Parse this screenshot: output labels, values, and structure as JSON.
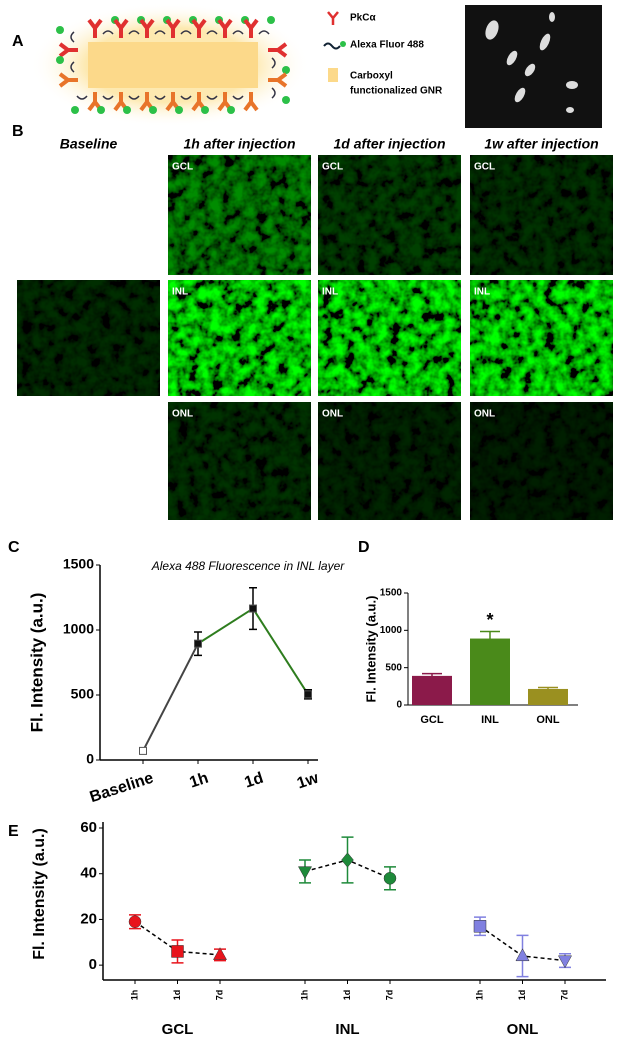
{
  "panel_labels": [
    "A",
    "B",
    "C",
    "D",
    "E"
  ],
  "legend_a": {
    "antibody": "PkCα",
    "dye": "Alexa Fluor 488",
    "particle": [
      "Carboxyl",
      "functionalized GNR"
    ]
  },
  "panel_b": {
    "columns": [
      "Baseline",
      "1h after injection",
      "1d after injection",
      "1w after injection"
    ],
    "layers": [
      "GCL",
      "INL",
      "ONL"
    ]
  },
  "chart_data": [
    {
      "type": "line",
      "title": "Alexa 488 Fluorescence in INL layer",
      "ylabel": "Fl. Intensity (a.u.)",
      "categories": [
        "Baseline",
        "1h",
        "1d",
        "1w"
      ],
      "values": [
        70,
        895,
        1165,
        505
      ],
      "errors": [
        15,
        90,
        160,
        35
      ],
      "colors": [
        "#666666",
        "#444444",
        "#2e7d1e",
        "#2e7d1e"
      ],
      "ylim": [
        0,
        1500
      ],
      "yticks": [
        0,
        500,
        1000,
        1500
      ]
    },
    {
      "type": "bar",
      "ylabel": "Fl. Intensity (a.u.)",
      "categories": [
        "GCL",
        "INL",
        "ONL"
      ],
      "values": [
        390,
        890,
        215
      ],
      "errors": [
        30,
        95,
        20
      ],
      "colors": [
        "#8b1a4a",
        "#4a8a1a",
        "#9a9020"
      ],
      "annotations": [
        {
          "text": "*",
          "category": "INL"
        }
      ],
      "ylim": [
        0,
        1500
      ],
      "yticks": [
        0,
        500,
        1000,
        1500
      ]
    },
    {
      "type": "scatter",
      "ylabel": "Fl. Intensity (a.u.)",
      "categories": [
        "1h",
        "1d",
        "7d"
      ],
      "series": [
        {
          "name": "GCL",
          "color": "#e8141c",
          "markers": [
            "circle",
            "square",
            "triangle-up"
          ],
          "values": [
            19,
            6,
            4.5
          ],
          "errors": [
            3,
            5,
            2.5
          ]
        },
        {
          "name": "INL",
          "color": "#1e8a3a",
          "markers": [
            "triangle-down",
            "diamond",
            "circle"
          ],
          "values": [
            41,
            46,
            38
          ],
          "errors": [
            5,
            10,
            5
          ]
        },
        {
          "name": "ONL",
          "color": "#8080e0",
          "markers": [
            "square",
            "triangle-up",
            "triangle-down"
          ],
          "values": [
            17,
            4,
            2
          ],
          "errors": [
            4,
            9,
            3
          ]
        }
      ],
      "ylim": [
        -6.5,
        60
      ],
      "yticks": [
        0,
        20,
        40,
        60
      ]
    }
  ]
}
